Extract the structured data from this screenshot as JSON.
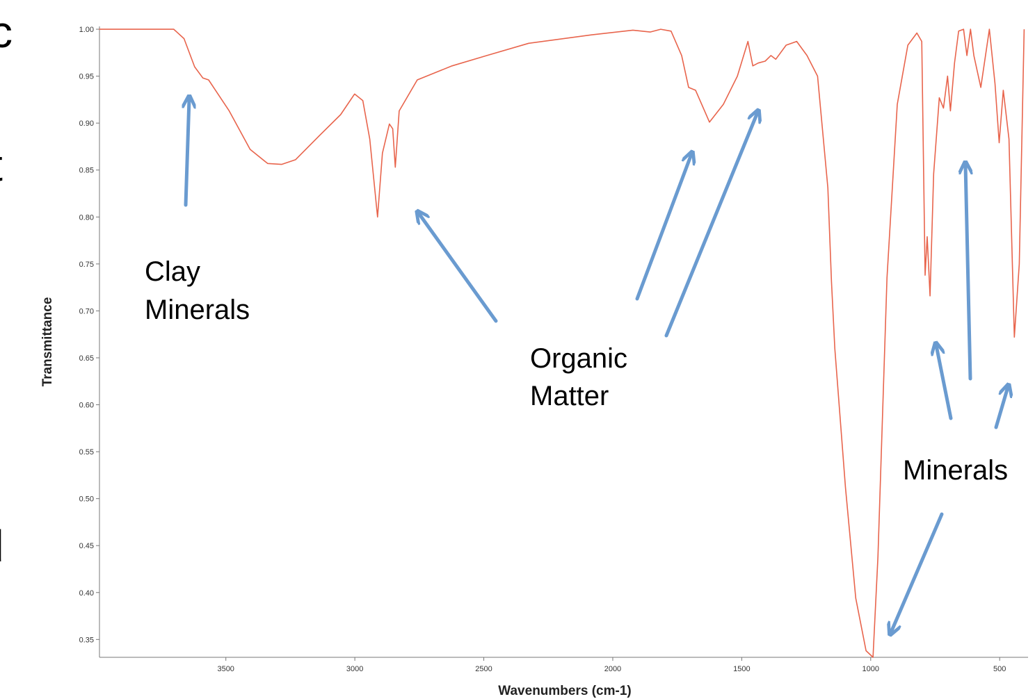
{
  "chart_data": {
    "type": "line",
    "x_label": "Wavenumbers (cm-1)",
    "y_label": "Transmittance",
    "xlim": [
      3990,
      390
    ],
    "ylim": [
      0.331,
      1.003
    ],
    "xticks": [
      3500,
      3000,
      2500,
      2000,
      1500,
      1000,
      500
    ],
    "yticks": [
      {
        "value": 1,
        "label": "1.00"
      },
      0.95,
      {
        "value": 0.9,
        "label": "0.90"
      },
      0.85,
      {
        "value": 0.8,
        "label": "0.80"
      },
      0.75,
      {
        "value": 0.7,
        "label": "0.70"
      },
      0.65,
      {
        "value": 0.6,
        "label": "0.60"
      },
      0.55,
      {
        "value": 0.5,
        "label": "0.50"
      },
      0.45,
      {
        "value": 0.4,
        "label": "0.40"
      },
      0.35
    ],
    "series": [
      {
        "color": "#e8644c",
        "x": [
          3991,
          3702,
          3662,
          3621,
          3589,
          3567,
          3487,
          3406,
          3338,
          3284,
          3230,
          3136,
          3055,
          3001,
          2969,
          2942,
          2912,
          2893,
          2866,
          2853,
          2843,
          2828,
          2758,
          2623,
          2488,
          2326,
          2083,
          1922,
          1855,
          1814,
          1774,
          1733,
          1706,
          1679,
          1625,
          1571,
          1517,
          1476,
          1457,
          1436,
          1409,
          1387,
          1368,
          1328,
          1287,
          1247,
          1206,
          1166,
          1152,
          1139,
          1098,
          1058,
          1018,
          991,
          972,
          937,
          897,
          856,
          821,
          802,
          789,
          781,
          770,
          756,
          734,
          718,
          702,
          691,
          675,
          659,
          640,
          627,
          613,
          600,
          573,
          540,
          518,
          502,
          486,
          464,
          443,
          424,
          405
        ],
        "values": [
          1.0,
          1.0,
          0.99,
          0.96,
          0.948,
          0.946,
          0.913,
          0.872,
          0.857,
          0.856,
          0.861,
          0.887,
          0.909,
          0.931,
          0.924,
          0.883,
          0.8,
          0.868,
          0.899,
          0.894,
          0.853,
          0.913,
          0.946,
          0.961,
          0.972,
          0.985,
          0.994,
          0.999,
          0.997,
          1.0,
          0.998,
          0.972,
          0.938,
          0.935,
          0.901,
          0.92,
          0.95,
          0.987,
          0.961,
          0.964,
          0.966,
          0.972,
          0.968,
          0.983,
          0.987,
          0.972,
          0.95,
          0.831,
          0.731,
          0.66,
          0.512,
          0.394,
          0.338,
          0.331,
          0.438,
          0.735,
          0.92,
          0.983,
          0.996,
          0.987,
          0.738,
          0.779,
          0.716,
          0.846,
          0.927,
          0.916,
          0.95,
          0.913,
          0.964,
          0.998,
          1.0,
          0.972,
          1.0,
          0.972,
          0.938,
          1.0,
          0.942,
          0.879,
          0.935,
          0.883,
          0.672,
          0.75,
          1.0
        ]
      }
    ],
    "annotations": [
      [
        "Clay",
        "Minerals"
      ],
      [
        "Organic",
        "Matter"
      ],
      [
        "Minerals"
      ]
    ]
  },
  "clipped_text": [
    "c",
    "t",
    "d"
  ]
}
